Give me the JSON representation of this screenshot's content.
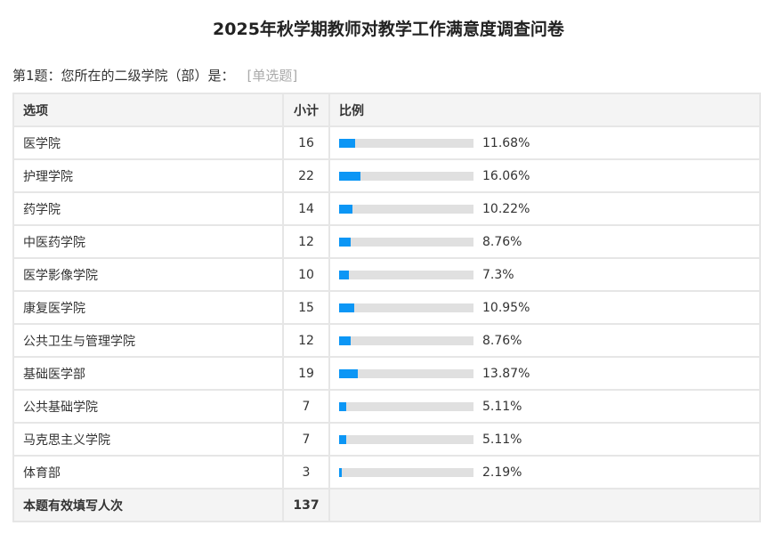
{
  "title": "2025年秋学期教师对教学工作满意度调查问卷",
  "question": {
    "text": "第1题：您所在的二级学院（部）是：",
    "type": "[单选题]"
  },
  "table": {
    "headers": [
      "选项",
      "小计",
      "比例"
    ],
    "rows": [
      {
        "option": "医学院",
        "count": "16",
        "percent": "11.68%",
        "value": 11.68
      },
      {
        "option": "护理学院",
        "count": "22",
        "percent": "16.06%",
        "value": 16.06
      },
      {
        "option": "药学院",
        "count": "14",
        "percent": "10.22%",
        "value": 10.22
      },
      {
        "option": "中医药学院",
        "count": "12",
        "percent": "8.76%",
        "value": 8.76
      },
      {
        "option": "医学影像学院",
        "count": "10",
        "percent": "7.3%",
        "value": 7.3
      },
      {
        "option": "康复医学院",
        "count": "15",
        "percent": "10.95%",
        "value": 10.95
      },
      {
        "option": "公共卫生与管理学院",
        "count": "12",
        "percent": "8.76%",
        "value": 8.76
      },
      {
        "option": "基础医学部",
        "count": "19",
        "percent": "13.87%",
        "value": 13.87
      },
      {
        "option": "公共基础学院",
        "count": "7",
        "percent": "5.11%",
        "value": 5.11
      },
      {
        "option": "马克思主义学院",
        "count": "7",
        "percent": "5.11%",
        "value": 5.11
      },
      {
        "option": "体育部",
        "count": "3",
        "percent": "2.19%",
        "value": 2.19
      }
    ],
    "total": {
      "label": "本题有效填写人次",
      "count": "137"
    }
  },
  "colors": {
    "bar_fill": "#0c96f5",
    "bar_track": "#e0e0e0"
  }
}
